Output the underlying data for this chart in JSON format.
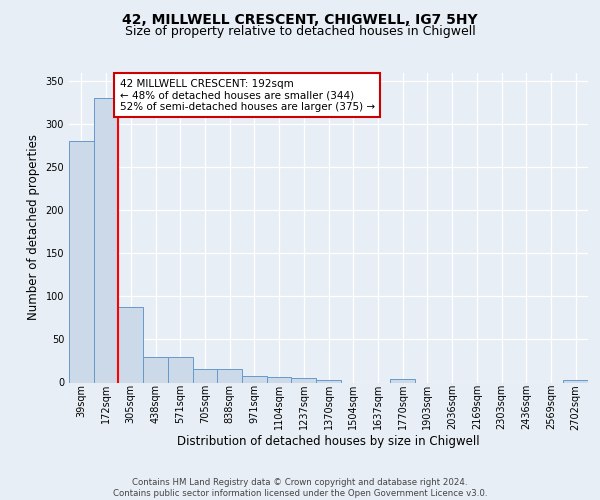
{
  "title": "42, MILLWELL CRESCENT, CHIGWELL, IG7 5HY",
  "subtitle": "Size of property relative to detached houses in Chigwell",
  "xlabel": "Distribution of detached houses by size in Chigwell",
  "ylabel": "Number of detached properties",
  "bar_labels": [
    "39sqm",
    "172sqm",
    "305sqm",
    "438sqm",
    "571sqm",
    "705sqm",
    "838sqm",
    "971sqm",
    "1104sqm",
    "1237sqm",
    "1370sqm",
    "1504sqm",
    "1637sqm",
    "1770sqm",
    "1903sqm",
    "2036sqm",
    "2169sqm",
    "2303sqm",
    "2436sqm",
    "2569sqm",
    "2702sqm"
  ],
  "bar_values": [
    280,
    330,
    88,
    30,
    30,
    16,
    16,
    8,
    6,
    5,
    3,
    0,
    0,
    4,
    0,
    0,
    0,
    0,
    0,
    0,
    3
  ],
  "bar_color": "#ccd9e8",
  "bar_edge_color": "#6699cc",
  "background_color": "#e8eef5",
  "fig_background_color": "#e8eef5",
  "grid_color": "#ffffff",
  "red_line_x": 1.48,
  "annotation_line1": "42 MILLWELL CRESCENT: 192sqm",
  "annotation_line2": "← 48% of detached houses are smaller (344)",
  "annotation_line3": "52% of semi-detached houses are larger (375) →",
  "annotation_box_color": "#ffffff",
  "annotation_box_edge": "#cc0000",
  "ylim": [
    0,
    360
  ],
  "yticks": [
    0,
    50,
    100,
    150,
    200,
    250,
    300,
    350
  ],
  "footer_text": "Contains HM Land Registry data © Crown copyright and database right 2024.\nContains public sector information licensed under the Open Government Licence v3.0.",
  "title_fontsize": 10,
  "subtitle_fontsize": 9,
  "tick_fontsize": 7,
  "ylabel_fontsize": 8.5,
  "xlabel_fontsize": 8.5,
  "footer_fontsize": 6.2,
  "annot_fontsize": 7.5
}
